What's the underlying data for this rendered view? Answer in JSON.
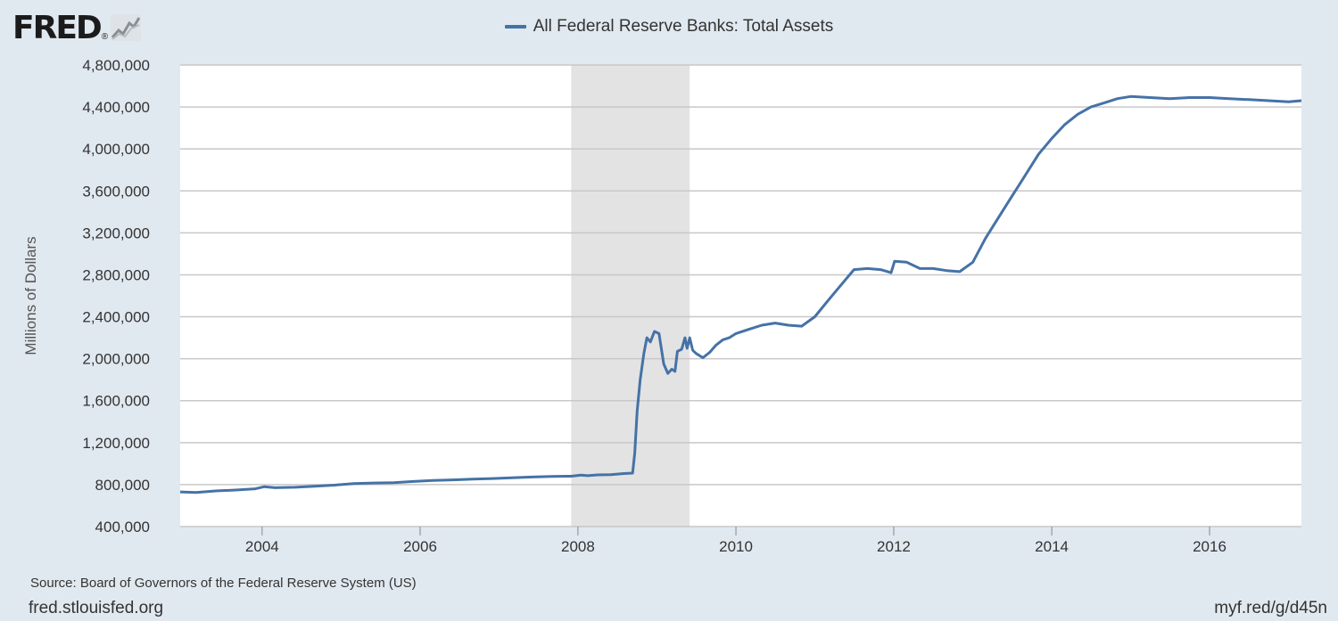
{
  "header": {
    "logo_text": "FRED",
    "logo_registered": "®",
    "legend_label": "All Federal Reserve Banks: Total Assets"
  },
  "footer": {
    "source": "Source: Board of Governors of the Federal Reserve System (US)",
    "site": "fred.stlouisfed.org",
    "short_url": "myf.red/g/d45n"
  },
  "colors": {
    "background": "#e1e9f0",
    "plot_background": "#ffffff",
    "recession_shade": "#e3e3e3",
    "series": "#4572a7",
    "gridline": "#c8c8c8"
  },
  "chart_data": {
    "type": "line",
    "ylabel": "Millions of Dollars",
    "ylim": [
      400000,
      4800000
    ],
    "yticks": [
      400000,
      800000,
      1200000,
      1600000,
      2000000,
      2400000,
      2800000,
      3200000,
      3600000,
      4000000,
      4400000,
      4800000
    ],
    "ytick_labels": [
      "400,000",
      "800,000",
      "1,200,000",
      "1,600,000",
      "2,000,000",
      "2,400,000",
      "2,800,000",
      "3,200,000",
      "3,600,000",
      "4,000,000",
      "4,400,000",
      "4,800,000"
    ],
    "xlim": [
      "2002-12-18",
      "2017-03-01"
    ],
    "xticks": [
      "2004-01-01",
      "2006-01-01",
      "2008-01-01",
      "2010-01-01",
      "2012-01-01",
      "2014-01-01",
      "2016-01-01"
    ],
    "xtick_labels": [
      "2004",
      "2006",
      "2008",
      "2010",
      "2012",
      "2014",
      "2016"
    ],
    "grid": true,
    "recessions": [
      {
        "start": "2007-12-01",
        "end": "2009-06-01"
      }
    ],
    "series": [
      {
        "name": "All Federal Reserve Banks: Total Assets",
        "color": "#4572a7",
        "points": [
          [
            "2002-12-18",
            730000
          ],
          [
            "2003-03-01",
            725000
          ],
          [
            "2003-06-01",
            740000
          ],
          [
            "2003-09-01",
            748000
          ],
          [
            "2003-12-01",
            760000
          ],
          [
            "2004-01-10",
            780000
          ],
          [
            "2004-03-01",
            770000
          ],
          [
            "2004-06-01",
            775000
          ],
          [
            "2004-09-01",
            785000
          ],
          [
            "2004-12-01",
            795000
          ],
          [
            "2005-03-01",
            810000
          ],
          [
            "2005-06-01",
            815000
          ],
          [
            "2005-09-01",
            818000
          ],
          [
            "2005-12-01",
            830000
          ],
          [
            "2006-03-01",
            840000
          ],
          [
            "2006-06-01",
            845000
          ],
          [
            "2006-09-01",
            852000
          ],
          [
            "2006-12-01",
            858000
          ],
          [
            "2007-03-01",
            865000
          ],
          [
            "2007-06-01",
            872000
          ],
          [
            "2007-09-01",
            878000
          ],
          [
            "2007-12-01",
            880000
          ],
          [
            "2008-01-15",
            890000
          ],
          [
            "2008-02-15",
            885000
          ],
          [
            "2008-04-01",
            893000
          ],
          [
            "2008-06-01",
            895000
          ],
          [
            "2008-08-01",
            905000
          ],
          [
            "2008-09-10",
            910000
          ],
          [
            "2008-09-20",
            1100000
          ],
          [
            "2008-10-01",
            1500000
          ],
          [
            "2008-10-15",
            1800000
          ],
          [
            "2008-11-01",
            2050000
          ],
          [
            "2008-11-15",
            2200000
          ],
          [
            "2008-12-01",
            2160000
          ],
          [
            "2008-12-20",
            2260000
          ],
          [
            "2009-01-10",
            2240000
          ],
          [
            "2009-02-01",
            1950000
          ],
          [
            "2009-02-20",
            1860000
          ],
          [
            "2009-03-10",
            1900000
          ],
          [
            "2009-03-25",
            1880000
          ],
          [
            "2009-04-05",
            2070000
          ],
          [
            "2009-04-25",
            2090000
          ],
          [
            "2009-05-10",
            2200000
          ],
          [
            "2009-05-20",
            2100000
          ],
          [
            "2009-06-01",
            2200000
          ],
          [
            "2009-06-15",
            2080000
          ],
          [
            "2009-07-01",
            2050000
          ],
          [
            "2009-08-01",
            2010000
          ],
          [
            "2009-09-01",
            2060000
          ],
          [
            "2009-10-01",
            2130000
          ],
          [
            "2009-11-01",
            2180000
          ],
          [
            "2009-12-01",
            2200000
          ],
          [
            "2010-01-01",
            2240000
          ],
          [
            "2010-03-01",
            2280000
          ],
          [
            "2010-05-01",
            2320000
          ],
          [
            "2010-07-01",
            2340000
          ],
          [
            "2010-09-01",
            2320000
          ],
          [
            "2010-11-01",
            2310000
          ],
          [
            "2011-01-01",
            2400000
          ],
          [
            "2011-03-01",
            2550000
          ],
          [
            "2011-05-01",
            2700000
          ],
          [
            "2011-07-01",
            2850000
          ],
          [
            "2011-09-01",
            2860000
          ],
          [
            "2011-11-01",
            2850000
          ],
          [
            "2011-12-20",
            2820000
          ],
          [
            "2012-01-05",
            2930000
          ],
          [
            "2012-03-01",
            2920000
          ],
          [
            "2012-05-01",
            2860000
          ],
          [
            "2012-07-01",
            2860000
          ],
          [
            "2012-09-01",
            2840000
          ],
          [
            "2012-11-01",
            2830000
          ],
          [
            "2013-01-01",
            2920000
          ],
          [
            "2013-03-01",
            3150000
          ],
          [
            "2013-05-01",
            3350000
          ],
          [
            "2013-07-01",
            3550000
          ],
          [
            "2013-09-01",
            3750000
          ],
          [
            "2013-11-01",
            3950000
          ],
          [
            "2014-01-01",
            4100000
          ],
          [
            "2014-03-01",
            4230000
          ],
          [
            "2014-05-01",
            4330000
          ],
          [
            "2014-07-01",
            4400000
          ],
          [
            "2014-09-01",
            4440000
          ],
          [
            "2014-11-01",
            4480000
          ],
          [
            "2015-01-01",
            4500000
          ],
          [
            "2015-04-01",
            4490000
          ],
          [
            "2015-07-01",
            4480000
          ],
          [
            "2015-10-01",
            4490000
          ],
          [
            "2016-01-01",
            4490000
          ],
          [
            "2016-04-01",
            4480000
          ],
          [
            "2016-07-01",
            4470000
          ],
          [
            "2016-10-01",
            4460000
          ],
          [
            "2017-01-01",
            4450000
          ],
          [
            "2017-03-01",
            4460000
          ]
        ]
      }
    ]
  }
}
